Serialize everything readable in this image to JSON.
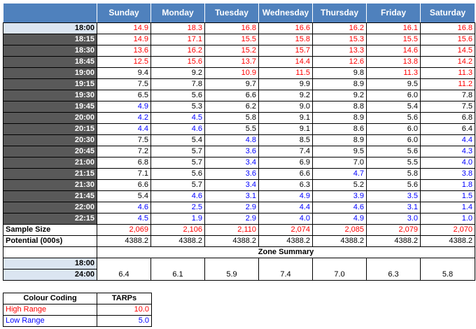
{
  "days": [
    "Sunday",
    "Monday",
    "Tuesday",
    "Wednesday",
    "Thursday",
    "Friday",
    "Saturday"
  ],
  "rows": [
    {
      "time": "18:00",
      "values": [
        "14.9",
        "18.3",
        "16.8",
        "16.6",
        "16.2",
        "16.1",
        "16.8"
      ],
      "levels": [
        "high",
        "high",
        "high",
        "high",
        "high",
        "high",
        "high"
      ]
    },
    {
      "time": "18:15",
      "values": [
        "14.9",
        "17.1",
        "15.5",
        "15.8",
        "15.3",
        "15.5",
        "15.6"
      ],
      "levels": [
        "high",
        "high",
        "high",
        "high",
        "high",
        "high",
        "high"
      ]
    },
    {
      "time": "18:30",
      "values": [
        "13.6",
        "16.2",
        "15.2",
        "15.7",
        "13.3",
        "14.6",
        "14.5"
      ],
      "levels": [
        "high",
        "high",
        "high",
        "high",
        "high",
        "high",
        "high"
      ]
    },
    {
      "time": "18:45",
      "values": [
        "12.5",
        "15.6",
        "13.7",
        "14.4",
        "12.6",
        "13.8",
        "14.2"
      ],
      "levels": [
        "high",
        "high",
        "high",
        "high",
        "high",
        "high",
        "high"
      ]
    },
    {
      "time": "19:00",
      "values": [
        "9.4",
        "9.2",
        "10.9",
        "11.5",
        "9.8",
        "11.3",
        "11.3"
      ],
      "levels": [
        "mid",
        "mid",
        "high",
        "high",
        "mid",
        "high",
        "high"
      ]
    },
    {
      "time": "19:15",
      "values": [
        "7.5",
        "7.8",
        "9.7",
        "9.9",
        "8.9",
        "9.5",
        "11.2"
      ],
      "levels": [
        "mid",
        "mid",
        "mid",
        "mid",
        "mid",
        "mid",
        "high"
      ]
    },
    {
      "time": "19:30",
      "values": [
        "6.5",
        "5.6",
        "6.6",
        "9.2",
        "9.2",
        "6.0",
        "7.8"
      ],
      "levels": [
        "mid",
        "mid",
        "mid",
        "mid",
        "mid",
        "mid",
        "mid"
      ]
    },
    {
      "time": "19:45",
      "values": [
        "4.9",
        "5.3",
        "6.2",
        "9.0",
        "8.8",
        "5.4",
        "7.5"
      ],
      "levels": [
        "low",
        "mid",
        "mid",
        "mid",
        "mid",
        "mid",
        "mid"
      ]
    },
    {
      "time": "20:00",
      "values": [
        "4.2",
        "4.5",
        "5.8",
        "9.1",
        "8.9",
        "5.6",
        "6.8"
      ],
      "levels": [
        "low",
        "low",
        "mid",
        "mid",
        "mid",
        "mid",
        "mid"
      ]
    },
    {
      "time": "20:15",
      "values": [
        "4.4",
        "4.6",
        "5.5",
        "9.1",
        "8.6",
        "6.0",
        "6.4"
      ],
      "levels": [
        "low",
        "low",
        "mid",
        "mid",
        "mid",
        "mid",
        "mid"
      ]
    },
    {
      "time": "20:30",
      "values": [
        "7.5",
        "5.4",
        "4.8",
        "8.5",
        "8.9",
        "6.0",
        "4.4"
      ],
      "levels": [
        "mid",
        "mid",
        "low",
        "mid",
        "mid",
        "mid",
        "low"
      ]
    },
    {
      "time": "20:45",
      "values": [
        "7.2",
        "5.7",
        "3.6",
        "7.4",
        "9.5",
        "5.6",
        "4.3"
      ],
      "levels": [
        "mid",
        "mid",
        "low",
        "mid",
        "mid",
        "mid",
        "low"
      ]
    },
    {
      "time": "21:00",
      "values": [
        "6.8",
        "5.7",
        "3.4",
        "6.9",
        "7.0",
        "5.5",
        "4.0"
      ],
      "levels": [
        "mid",
        "mid",
        "low",
        "mid",
        "mid",
        "mid",
        "low"
      ]
    },
    {
      "time": "21:15",
      "values": [
        "7.1",
        "5.6",
        "3.6",
        "6.6",
        "4.7",
        "5.8",
        "3.8"
      ],
      "levels": [
        "mid",
        "mid",
        "low",
        "mid",
        "low",
        "mid",
        "low"
      ]
    },
    {
      "time": "21:30",
      "values": [
        "6.6",
        "5.7",
        "3.4",
        "6.3",
        "5.2",
        "5.6",
        "1.8"
      ],
      "levels": [
        "mid",
        "mid",
        "low",
        "mid",
        "mid",
        "mid",
        "low"
      ]
    },
    {
      "time": "21:45",
      "values": [
        "5.4",
        "4.6",
        "3.1",
        "4.9",
        "3.9",
        "3.5",
        "1.5"
      ],
      "levels": [
        "mid",
        "low",
        "low",
        "low",
        "low",
        "low",
        "low"
      ]
    },
    {
      "time": "22:00",
      "values": [
        "4.6",
        "2.5",
        "2.9",
        "4.4",
        "4.6",
        "3.1",
        "1.4"
      ],
      "levels": [
        "low",
        "low",
        "low",
        "low",
        "low",
        "low",
        "low"
      ]
    },
    {
      "time": "22:15",
      "values": [
        "4.5",
        "1.9",
        "2.9",
        "4.0",
        "4.9",
        "3.0",
        "1.0"
      ],
      "levels": [
        "low",
        "low",
        "low",
        "low",
        "low",
        "low",
        "low"
      ]
    }
  ],
  "sample_size": {
    "label": "Sample Size",
    "values": [
      "2,069",
      "2,106",
      "2,110",
      "2,074",
      "2,085",
      "2,079",
      "2,070"
    ]
  },
  "potential": {
    "label": "Potential (000s)",
    "values": [
      "4388.2",
      "4388.2",
      "4388.2",
      "4388.2",
      "4388.2",
      "4388.2",
      "4388.2"
    ]
  },
  "zone_summary": {
    "title": "Zone Summary",
    "start_time": "18:00",
    "end_time": "24:00",
    "values": [
      "6.4",
      "6.1",
      "5.9",
      "7.4",
      "7.0",
      "6.3",
      "5.8"
    ]
  },
  "legend": {
    "title": "Colour Coding",
    "column": "TARPs",
    "items": [
      {
        "label": "High Range",
        "value": "10.0"
      },
      {
        "label": "Low Range",
        "value": "5.0"
      }
    ]
  },
  "colors": {
    "header_bg": "#4f81bd",
    "time_bg": "#595959",
    "highlight_bg": "#dbe5f1",
    "high": "#ff0000",
    "low": "#0000ff",
    "mid": "#000000"
  }
}
